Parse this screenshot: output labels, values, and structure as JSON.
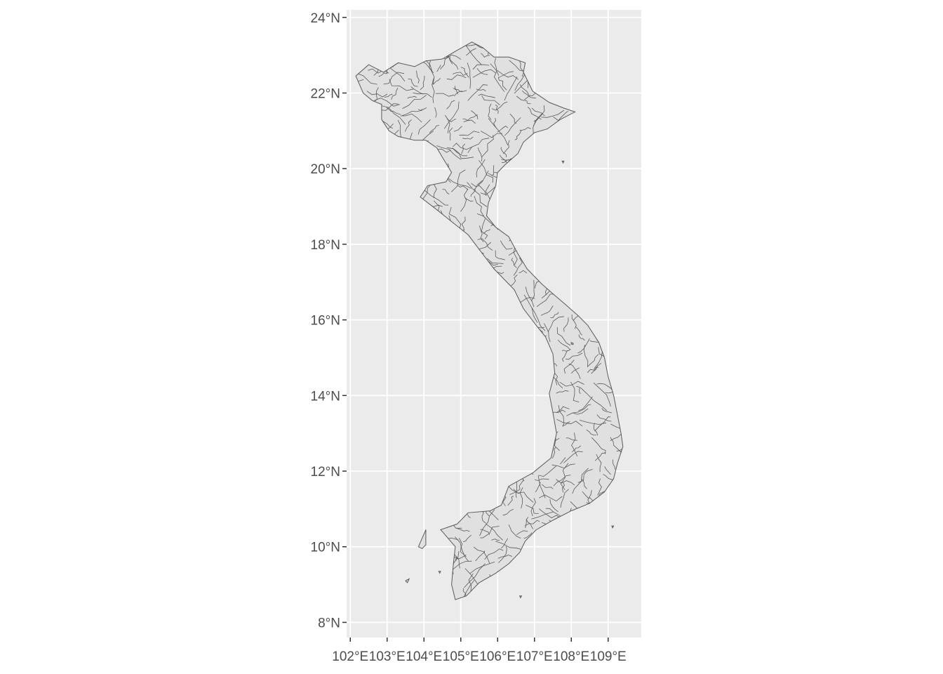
{
  "map": {
    "colors": {
      "panel_background": "#ebebeb",
      "grid": "#ffffff",
      "region_fill": "#e0e0e0",
      "region_stroke": "#595959",
      "tick_text": "#4d4d4d",
      "tick_mark": "#333333"
    },
    "lon_range": [
      101.9,
      109.9
    ],
    "lat_range": [
      7.6,
      24.2
    ],
    "lon_ticks": [
      {
        "value": 102,
        "label": "102°E"
      },
      {
        "value": 103,
        "label": "103°E"
      },
      {
        "value": 104,
        "label": "104°E"
      },
      {
        "value": 105,
        "label": "105°E"
      },
      {
        "value": 106,
        "label": "106°E"
      },
      {
        "value": 107,
        "label": "107°E"
      },
      {
        "value": 108,
        "label": "108°E"
      },
      {
        "value": 109,
        "label": "109°E"
      }
    ],
    "lat_ticks": [
      {
        "value": 8,
        "label": "8°N"
      },
      {
        "value": 10,
        "label": "10°N"
      },
      {
        "value": 12,
        "label": "12°N"
      },
      {
        "value": 14,
        "label": "14°N"
      },
      {
        "value": 16,
        "label": "16°N"
      },
      {
        "value": 18,
        "label": "18°N"
      },
      {
        "value": 20,
        "label": "20°N"
      },
      {
        "value": 22,
        "label": "22°N"
      },
      {
        "value": 24,
        "label": "24°N"
      }
    ],
    "mainland_outline": [
      [
        102.15,
        22.45
      ],
      [
        102.5,
        22.75
      ],
      [
        102.9,
        22.55
      ],
      [
        103.3,
        22.8
      ],
      [
        103.75,
        22.7
      ],
      [
        104.05,
        22.85
      ],
      [
        104.5,
        22.9
      ],
      [
        104.85,
        23.1
      ],
      [
        105.3,
        23.35
      ],
      [
        105.6,
        23.2
      ],
      [
        105.9,
        22.95
      ],
      [
        106.3,
        22.95
      ],
      [
        106.75,
        22.8
      ],
      [
        106.7,
        22.55
      ],
      [
        106.95,
        22.05
      ],
      [
        107.4,
        21.75
      ],
      [
        107.8,
        21.6
      ],
      [
        108.1,
        21.5
      ],
      [
        107.7,
        21.3
      ],
      [
        107.35,
        21.05
      ],
      [
        107.0,
        20.95
      ],
      [
        106.7,
        20.7
      ],
      [
        106.55,
        20.4
      ],
      [
        106.2,
        20.1
      ],
      [
        106.0,
        19.9
      ],
      [
        105.95,
        19.55
      ],
      [
        105.75,
        19.1
      ],
      [
        105.7,
        18.75
      ],
      [
        105.95,
        18.45
      ],
      [
        106.3,
        18.2
      ],
      [
        106.55,
        17.75
      ],
      [
        106.8,
        17.35
      ],
      [
        107.2,
        16.95
      ],
      [
        107.55,
        16.65
      ],
      [
        107.85,
        16.4
      ],
      [
        108.2,
        16.1
      ],
      [
        108.45,
        15.85
      ],
      [
        108.75,
        15.4
      ],
      [
        108.9,
        15.0
      ],
      [
        109.0,
        14.5
      ],
      [
        109.15,
        14.0
      ],
      [
        109.25,
        13.5
      ],
      [
        109.35,
        13.0
      ],
      [
        109.4,
        12.65
      ],
      [
        109.25,
        12.2
      ],
      [
        109.15,
        11.8
      ],
      [
        108.9,
        11.45
      ],
      [
        108.5,
        11.15
      ],
      [
        108.0,
        10.95
      ],
      [
        107.5,
        10.7
      ],
      [
        107.05,
        10.45
      ],
      [
        106.75,
        10.15
      ],
      [
        106.6,
        9.85
      ],
      [
        106.3,
        9.55
      ],
      [
        105.95,
        9.3
      ],
      [
        105.5,
        9.05
      ],
      [
        105.15,
        8.7
      ],
      [
        104.85,
        8.6
      ],
      [
        104.75,
        9.0
      ],
      [
        104.8,
        9.55
      ],
      [
        104.85,
        10.0
      ],
      [
        104.5,
        10.4
      ],
      [
        104.45,
        10.45
      ],
      [
        104.9,
        10.6
      ],
      [
        105.2,
        10.9
      ],
      [
        105.8,
        10.95
      ],
      [
        106.1,
        11.1
      ],
      [
        106.3,
        11.6
      ],
      [
        106.95,
        11.95
      ],
      [
        107.45,
        12.35
      ],
      [
        107.6,
        13.0
      ],
      [
        107.5,
        13.55
      ],
      [
        107.4,
        14.05
      ],
      [
        107.55,
        14.6
      ],
      [
        107.5,
        15.1
      ],
      [
        107.3,
        15.55
      ],
      [
        107.05,
        15.85
      ],
      [
        106.7,
        16.3
      ],
      [
        106.45,
        16.8
      ],
      [
        105.9,
        17.35
      ],
      [
        105.55,
        17.8
      ],
      [
        105.2,
        18.25
      ],
      [
        104.75,
        18.6
      ],
      [
        104.3,
        18.95
      ],
      [
        103.9,
        19.25
      ],
      [
        104.1,
        19.55
      ],
      [
        104.6,
        19.65
      ],
      [
        104.75,
        19.9
      ],
      [
        104.5,
        20.3
      ],
      [
        104.35,
        20.55
      ],
      [
        104.05,
        20.75
      ],
      [
        103.75,
        20.75
      ],
      [
        103.3,
        20.85
      ],
      [
        103.05,
        21.0
      ],
      [
        102.85,
        21.3
      ],
      [
        102.85,
        21.7
      ],
      [
        102.6,
        21.8
      ],
      [
        102.35,
        22.0
      ]
    ],
    "islands": [
      [
        [
          103.85,
          10.0
        ],
        [
          104.05,
          10.45
        ],
        [
          104.05,
          10.05
        ],
        [
          103.95,
          9.95
        ]
      ],
      [
        [
          108.0,
          15.4
        ],
        [
          108.05,
          15.38
        ],
        [
          108.05,
          15.35
        ],
        [
          108.0,
          15.36
        ]
      ],
      [
        [
          109.1,
          10.55
        ],
        [
          109.15,
          10.55
        ],
        [
          109.12,
          10.5
        ]
      ],
      [
        [
          107.75,
          20.2
        ],
        [
          107.8,
          20.2
        ],
        [
          107.78,
          20.15
        ]
      ],
      [
        [
          104.4,
          9.35
        ],
        [
          104.45,
          9.35
        ],
        [
          104.43,
          9.3
        ]
      ],
      [
        [
          103.5,
          9.1
        ],
        [
          103.6,
          9.15
        ],
        [
          103.55,
          9.05
        ]
      ],
      [
        [
          106.6,
          8.7
        ],
        [
          106.65,
          8.7
        ],
        [
          106.62,
          8.65
        ]
      ]
    ]
  }
}
